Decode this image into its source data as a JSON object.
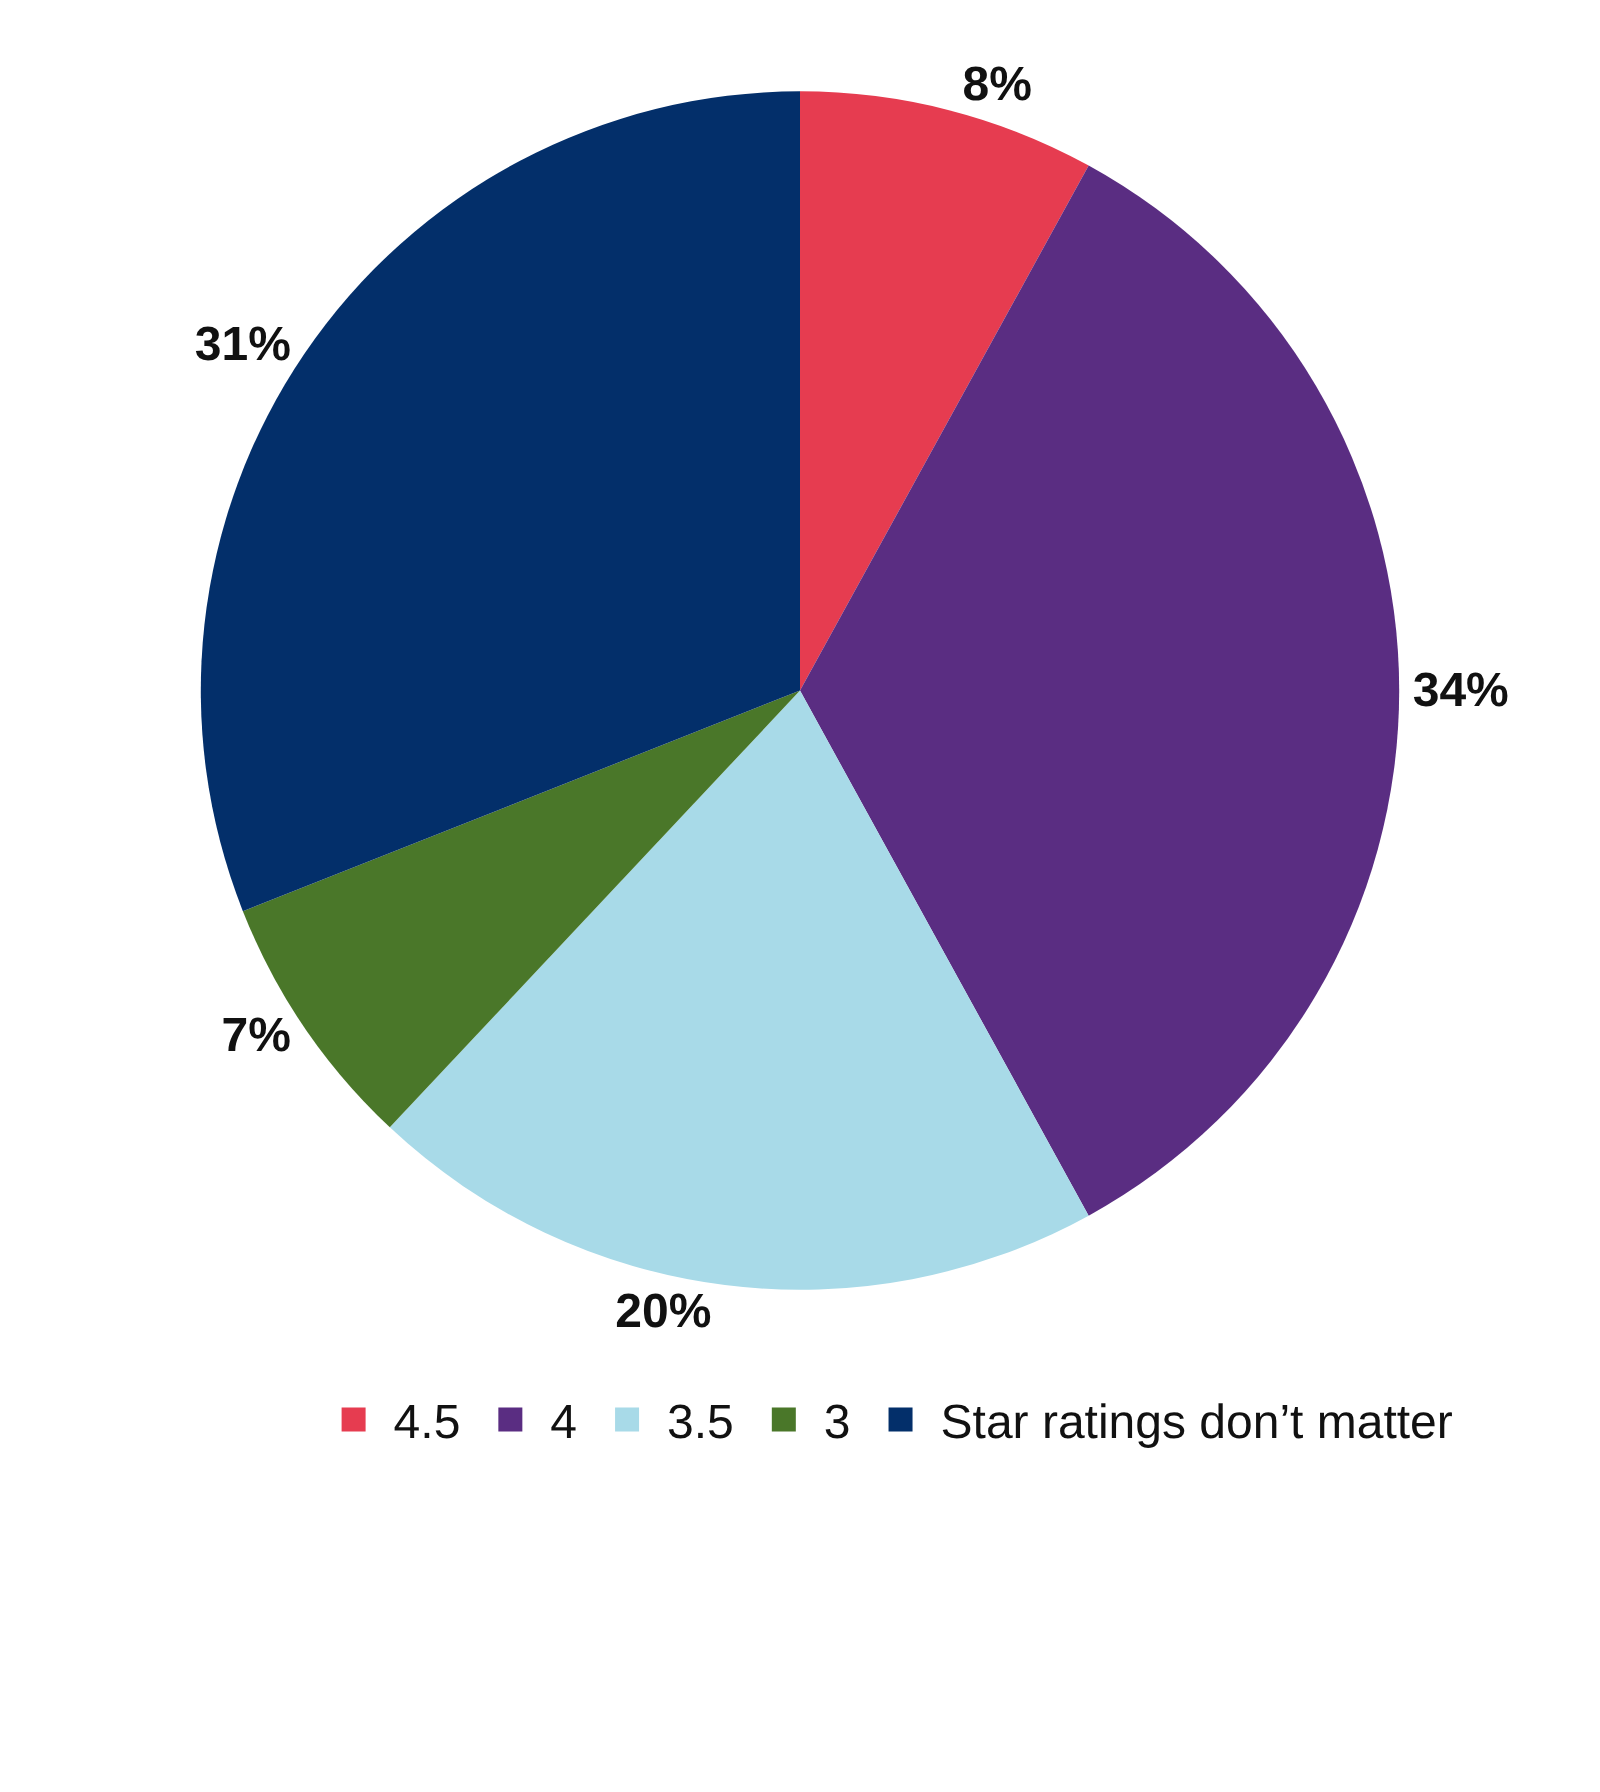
{
  "chart_data": {
    "type": "pie",
    "categories": [
      "4.5",
      "4",
      "3.5",
      "3",
      "Star ratings don’t matter"
    ],
    "values": [
      8,
      34,
      20,
      7,
      31
    ],
    "value_labels": [
      "8%",
      "34%",
      "20%",
      "7%",
      "31%"
    ],
    "colors": [
      "#e63c50",
      "#5a2d82",
      "#a8dae8",
      "#4a7729",
      "#032f6a"
    ],
    "legend": "bottom"
  }
}
